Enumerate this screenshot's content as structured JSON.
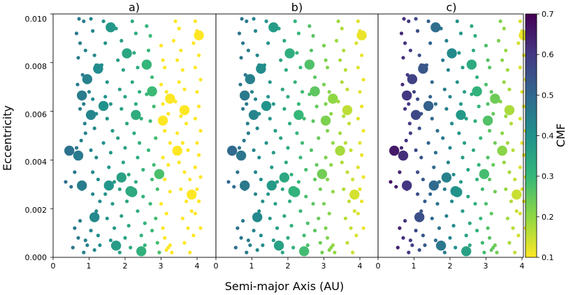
{
  "chart_data": {
    "type": "scatter",
    "xlabel": "Semi-major Axis (AU)",
    "ylabel": "Eccentricity",
    "xlim": [
      0,
      4.5
    ],
    "ylim": [
      0,
      0.01
    ],
    "xticks": [
      "0",
      "1",
      "2",
      "3",
      "4"
    ],
    "yticks": [
      "0.000",
      "0.002",
      "0.004",
      "0.006",
      "0.008",
      "0.010"
    ],
    "panels": [
      {
        "title": "a)",
        "cmf_mode": "steep"
      },
      {
        "title": "b)",
        "cmf_mode": "mid"
      },
      {
        "title": "c)",
        "cmf_mode": "full"
      }
    ],
    "colorbar": {
      "label": "CMF",
      "range": [
        0.1,
        0.7
      ],
      "ticks": [
        "0.1",
        "0.2",
        "0.3",
        "0.4",
        "0.5",
        "0.6",
        "0.7"
      ],
      "colormap": "viridis_r"
    },
    "large_points": [
      [
        0.45,
        0.00438
      ],
      [
        0.7,
        0.00418
      ],
      [
        0.8,
        0.00295
      ],
      [
        0.8,
        0.00665
      ],
      [
        0.95,
        0.00732
      ],
      [
        1.05,
        0.00585
      ],
      [
        1.15,
        0.00165
      ],
      [
        1.25,
        0.00775
      ],
      [
        1.4,
        0.00622
      ],
      [
        1.55,
        0.00295
      ],
      [
        1.6,
        0.00945
      ],
      [
        1.75,
        0.00048
      ],
      [
        1.9,
        0.00328
      ],
      [
        2.05,
        0.00838
      ],
      [
        2.15,
        0.00272
      ],
      [
        2.3,
        0.00585
      ],
      [
        2.45,
        0.00025
      ],
      [
        2.6,
        0.00792
      ],
      [
        2.75,
        0.00682
      ],
      [
        2.95,
        0.00342
      ],
      [
        3.05,
        0.00562
      ],
      [
        3.25,
        0.00652
      ],
      [
        3.45,
        0.00438
      ],
      [
        3.65,
        0.00605
      ],
      [
        3.85,
        0.00258
      ],
      [
        4.05,
        0.00912
      ],
      [
        2.2,
        0.00268
      ]
    ],
    "small_points": [
      [
        0.35,
        0.0031
      ],
      [
        0.5,
        0.0029
      ],
      [
        0.6,
        0.0035
      ],
      [
        0.65,
        0.0092
      ],
      [
        0.72,
        0.0098
      ],
      [
        0.85,
        0.0097
      ],
      [
        0.6,
        0.0012
      ],
      [
        0.75,
        0.0015
      ],
      [
        0.7,
        0.0008
      ],
      [
        0.85,
        0.0002
      ],
      [
        0.9,
        0.0007
      ],
      [
        0.95,
        0.0005
      ],
      [
        0.55,
        0.0004
      ],
      [
        0.8,
        0.0028
      ],
      [
        0.65,
        0.0045
      ],
      [
        0.78,
        0.0048
      ],
      [
        0.9,
        0.0051
      ],
      [
        0.88,
        0.0055
      ],
      [
        0.75,
        0.0061
      ],
      [
        0.85,
        0.0063
      ],
      [
        0.68,
        0.0071
      ],
      [
        0.82,
        0.0075
      ],
      [
        0.7,
        0.0082
      ],
      [
        0.9,
        0.0085
      ],
      [
        0.75,
        0.0088
      ],
      [
        1.05,
        0.0098
      ],
      [
        1.1,
        0.0093
      ],
      [
        1.15,
        0.0083
      ],
      [
        1.2,
        0.0079
      ],
      [
        1.0,
        0.0068
      ],
      [
        1.1,
        0.0065
      ],
      [
        1.2,
        0.0059
      ],
      [
        1.15,
        0.0053
      ],
      [
        1.05,
        0.0044
      ],
      [
        1.2,
        0.0041
      ],
      [
        1.1,
        0.0035
      ],
      [
        1.25,
        0.0032
      ],
      [
        1.1,
        0.0026
      ],
      [
        1.3,
        0.0023
      ],
      [
        1.2,
        0.0019
      ],
      [
        1.05,
        0.0011
      ],
      [
        1.25,
        0.0009
      ],
      [
        1.3,
        0.0005
      ],
      [
        1.15,
        0.0003
      ],
      [
        1.4,
        0.0097
      ],
      [
        1.45,
        0.0088
      ],
      [
        1.35,
        0.0079
      ],
      [
        1.5,
        0.0072
      ],
      [
        1.45,
        0.0066
      ],
      [
        1.6,
        0.0063
      ],
      [
        1.5,
        0.0057
      ],
      [
        1.65,
        0.0052
      ],
      [
        1.4,
        0.0047
      ],
      [
        1.6,
        0.0043
      ],
      [
        1.55,
        0.0037
      ],
      [
        1.7,
        0.0031
      ],
      [
        1.45,
        0.0026
      ],
      [
        1.65,
        0.0022
      ],
      [
        1.5,
        0.0016
      ],
      [
        1.7,
        0.0012
      ],
      [
        1.6,
        0.0007
      ],
      [
        1.85,
        0.0002
      ],
      [
        1.75,
        0.0094
      ],
      [
        1.9,
        0.0089
      ],
      [
        1.8,
        0.0081
      ],
      [
        1.95,
        0.0077
      ],
      [
        1.85,
        0.0069
      ],
      [
        2.0,
        0.0066
      ],
      [
        1.9,
        0.0061
      ],
      [
        2.05,
        0.0055
      ],
      [
        1.8,
        0.0049
      ],
      [
        2.0,
        0.0045
      ],
      [
        1.95,
        0.0039
      ],
      [
        2.1,
        0.0034
      ],
      [
        1.85,
        0.0028
      ],
      [
        2.05,
        0.0023
      ],
      [
        1.9,
        0.0017
      ],
      [
        2.1,
        0.0013
      ],
      [
        2.0,
        0.0008
      ],
      [
        2.15,
        0.0004
      ],
      [
        2.2,
        0.0097
      ],
      [
        2.3,
        0.0092
      ],
      [
        2.25,
        0.0084
      ],
      [
        2.35,
        0.0078
      ],
      [
        2.2,
        0.0072
      ],
      [
        2.4,
        0.0068
      ],
      [
        2.3,
        0.0063
      ],
      [
        2.45,
        0.0057
      ],
      [
        2.25,
        0.0051
      ],
      [
        2.4,
        0.0047
      ],
      [
        2.35,
        0.0041
      ],
      [
        2.5,
        0.0036
      ],
      [
        2.3,
        0.0031
      ],
      [
        2.5,
        0.0025
      ],
      [
        2.35,
        0.0019
      ],
      [
        2.55,
        0.0014
      ],
      [
        2.45,
        0.0009
      ],
      [
        2.55,
        0.0005
      ],
      [
        2.6,
        0.0095
      ],
      [
        2.7,
        0.0091
      ],
      [
        2.65,
        0.0085
      ],
      [
        2.75,
        0.0074
      ],
      [
        2.6,
        0.0067
      ],
      [
        2.8,
        0.0062
      ],
      [
        2.7,
        0.0056
      ],
      [
        2.85,
        0.0049
      ],
      [
        2.65,
        0.0044
      ],
      [
        2.8,
        0.0038
      ],
      [
        2.75,
        0.0032
      ],
      [
        2.9,
        0.0028
      ],
      [
        2.7,
        0.0022
      ],
      [
        2.85,
        0.0016
      ],
      [
        2.75,
        0.0011
      ],
      [
        2.9,
        0.0006
      ],
      [
        2.95,
        0.0002
      ],
      [
        3.0,
        0.0087
      ],
      [
        3.05,
        0.0081
      ],
      [
        3.1,
        0.0078
      ],
      [
        3.0,
        0.0071
      ],
      [
        3.15,
        0.0068
      ],
      [
        3.05,
        0.0063
      ],
      [
        3.2,
        0.0059
      ],
      [
        3.1,
        0.0052
      ],
      [
        3.25,
        0.0047
      ],
      [
        3.05,
        0.0041
      ],
      [
        3.2,
        0.0038
      ],
      [
        3.1,
        0.0032
      ],
      [
        3.25,
        0.0027
      ],
      [
        3.0,
        0.0022
      ],
      [
        3.15,
        0.0018
      ],
      [
        3.05,
        0.0012
      ],
      [
        3.1,
        0.0008
      ],
      [
        3.2,
        0.0004
      ],
      [
        3.3,
        0.0002
      ],
      [
        3.15,
        0.0003
      ],
      [
        3.25,
        0.0005
      ],
      [
        3.4,
        0.0097
      ],
      [
        3.5,
        0.0094
      ],
      [
        3.35,
        0.0089
      ],
      [
        3.55,
        0.0085
      ],
      [
        3.45,
        0.0081
      ],
      [
        3.6,
        0.0077
      ],
      [
        3.5,
        0.0072
      ],
      [
        3.65,
        0.0069
      ],
      [
        3.4,
        0.0064
      ],
      [
        3.55,
        0.0058
      ],
      [
        3.7,
        0.0055
      ],
      [
        3.45,
        0.0051
      ],
      [
        3.6,
        0.0047
      ],
      [
        3.75,
        0.0044
      ],
      [
        3.5,
        0.0039
      ],
      [
        3.65,
        0.0035
      ],
      [
        3.8,
        0.0032
      ],
      [
        3.55,
        0.0028
      ],
      [
        3.7,
        0.0023
      ],
      [
        3.85,
        0.0019
      ],
      [
        3.6,
        0.0016
      ],
      [
        3.75,
        0.0012
      ],
      [
        3.9,
        0.0009
      ],
      [
        3.65,
        0.0006
      ],
      [
        3.8,
        0.0002
      ],
      [
        3.95,
        0.0097
      ],
      [
        4.0,
        0.0093
      ],
      [
        3.9,
        0.0088
      ],
      [
        4.05,
        0.0083
      ],
      [
        3.95,
        0.0078
      ],
      [
        4.1,
        0.0073
      ],
      [
        4.0,
        0.0068
      ],
      [
        4.05,
        0.0062
      ],
      [
        3.95,
        0.0057
      ],
      [
        4.1,
        0.0052
      ],
      [
        4.0,
        0.0047
      ],
      [
        4.05,
        0.0042
      ],
      [
        3.95,
        0.0037
      ],
      [
        4.1,
        0.0033
      ],
      [
        4.0,
        0.0028
      ],
      [
        4.05,
        0.0023
      ],
      [
        3.95,
        0.0018
      ],
      [
        4.1,
        0.0012
      ]
    ]
  }
}
